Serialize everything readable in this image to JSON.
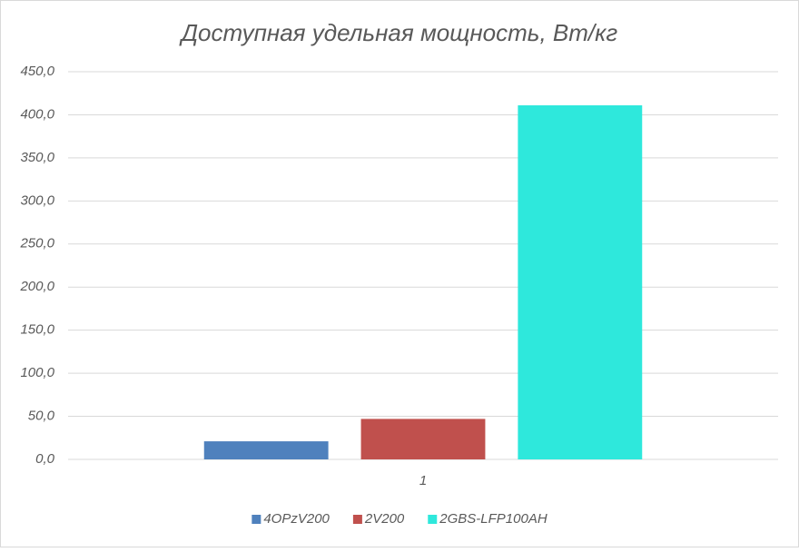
{
  "chart_data": {
    "type": "bar",
    "title": "Доступная удельная мощность, Вт/кг",
    "categories": [
      "1"
    ],
    "series": [
      {
        "name": "4OPzV200",
        "color": "#4f81bd",
        "values": [
          21
        ]
      },
      {
        "name": "2V200",
        "color": "#c0504d",
        "values": [
          47
        ]
      },
      {
        "name": "2GBS-LFP100AH",
        "color": "#2ee8dc",
        "values": [
          411
        ]
      }
    ],
    "ylim": [
      0,
      450
    ],
    "yticks": [
      {
        "value": 0,
        "label": "0,0"
      },
      {
        "value": 50,
        "label": "50,0"
      },
      {
        "value": 100,
        "label": "100,0"
      },
      {
        "value": 150,
        "label": "150,0"
      },
      {
        "value": 200,
        "label": "200,0"
      },
      {
        "value": 250,
        "label": "250,0"
      },
      {
        "value": 300,
        "label": "300,0"
      },
      {
        "value": 350,
        "label": "350,0"
      },
      {
        "value": 400,
        "label": "400,0"
      },
      {
        "value": 450,
        "label": "450,0"
      }
    ],
    "grid": true,
    "legend": "bottom"
  }
}
